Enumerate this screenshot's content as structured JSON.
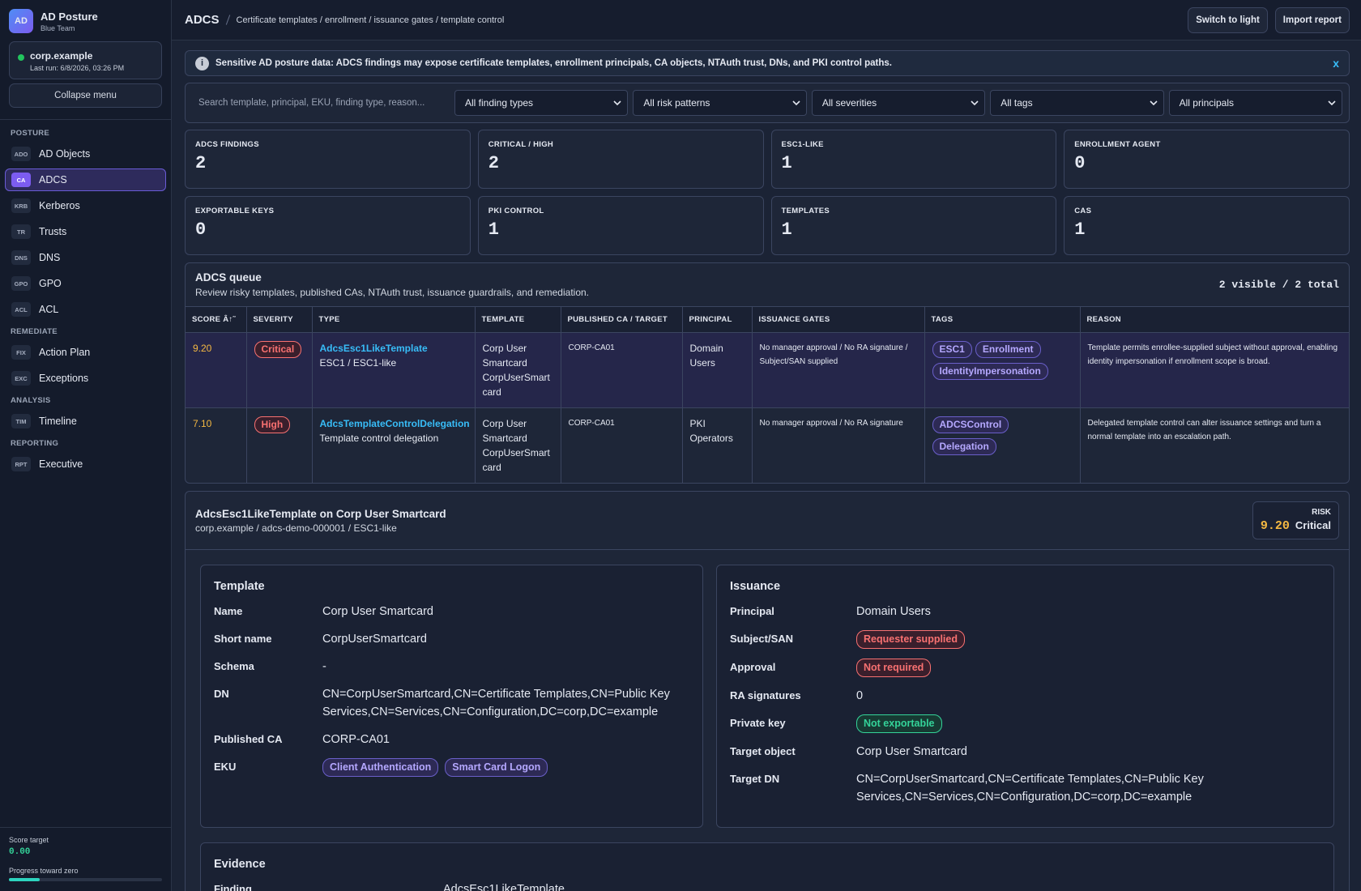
{
  "sidebar": {
    "logo": "AD",
    "app": "AD Posture",
    "team": "Blue Team",
    "domain": "corp.example",
    "last_run": "Last run: 6/8/2026, 03:26 PM",
    "collapse": "Collapse menu",
    "sections": [
      {
        "title": "POSTURE",
        "items": [
          {
            "code": "ADO",
            "label": "AD Objects"
          },
          {
            "code": "CA",
            "label": "ADCS",
            "active": true
          },
          {
            "code": "KRB",
            "label": "Kerberos"
          },
          {
            "code": "TR",
            "label": "Trusts"
          },
          {
            "code": "DNS",
            "label": "DNS"
          },
          {
            "code": "GPO",
            "label": "GPO"
          },
          {
            "code": "ACL",
            "label": "ACL"
          }
        ]
      },
      {
        "title": "REMEDIATE",
        "items": [
          {
            "code": "FIX",
            "label": "Action Plan"
          },
          {
            "code": "EXC",
            "label": "Exceptions"
          }
        ]
      },
      {
        "title": "ANALYSIS",
        "items": [
          {
            "code": "TIM",
            "label": "Timeline"
          }
        ]
      },
      {
        "title": "REPORTING",
        "items": [
          {
            "code": "RPT",
            "label": "Executive"
          }
        ]
      }
    ],
    "score_target_label": "Score target",
    "score_target": "0.00",
    "progress_label": "Progress toward zero"
  },
  "header": {
    "title": "ADCS",
    "breadcrumb": "Certificate templates / enrollment / issuance gates / template control",
    "buttons": [
      "Switch to light",
      "Import report"
    ]
  },
  "banner": {
    "icon": "i",
    "text": "Sensitive AD posture data: ADCS findings may expose certificate templates, enrollment principals, CA objects, NTAuth trust, DNs, and PKI control paths.",
    "close": "x"
  },
  "filters": {
    "search_placeholder": "Search template, principal, EKU, finding type, reason...",
    "selects": [
      "All finding types",
      "All risk patterns",
      "All severities",
      "All tags",
      "All principals"
    ]
  },
  "stats": [
    {
      "label": "ADCS FINDINGS",
      "value": 2
    },
    {
      "label": "CRITICAL / HIGH",
      "value": 2
    },
    {
      "label": "ESC1-LIKE",
      "value": 1
    },
    {
      "label": "ENROLLMENT AGENT",
      "value": 0
    },
    {
      "label": "EXPORTABLE KEYS",
      "value": 0
    },
    {
      "label": "PKI CONTROL",
      "value": 1
    },
    {
      "label": "TEMPLATES",
      "value": 1
    },
    {
      "label": "CAS",
      "value": 1
    }
  ],
  "queue": {
    "title": "ADCS queue",
    "subtitle": "Review risky templates, published CAs, NTAuth trust, issuance guardrails, and remediation.",
    "count": "2 visible / 2 total",
    "columns": [
      "SCORE Â↑˜",
      "SEVERITY",
      "TYPE",
      "TEMPLATE",
      "PUBLISHED CA / TARGET",
      "PRINCIPAL",
      "ISSUANCE GATES",
      "TAGS",
      "REASON"
    ],
    "rows": [
      {
        "score": "9.20",
        "severity": "Critical",
        "type": "AdcsEsc1LikeTemplate",
        "type_sub": "ESC1 / ESC1-like",
        "template": "Corp User Smartcard",
        "template_short": "CorpUserSmartcard",
        "ca": "CORP-CA01",
        "principal": "Domain Users",
        "gates": "No manager approval / No RA signature / Subject/SAN supplied",
        "tags": [
          "ESC1",
          "Enrollment",
          "IdentityImpersonation"
        ],
        "reason": "Template permits enrollee-supplied subject without approval, enabling identity impersonation if enrollment scope is broad.",
        "selected": true
      },
      {
        "score": "7.10",
        "severity": "High",
        "type": "AdcsTemplateControlDelegation",
        "type_sub": "Template control delegation",
        "template": "Corp User Smartcard",
        "template_short": "CorpUserSmartcard",
        "ca": "CORP-CA01",
        "principal": "PKI Operators",
        "gates": "No manager approval / No RA signature",
        "tags": [
          "ADCSControl",
          "Delegation"
        ],
        "reason": "Delegated template control can alter issuance settings and turn a normal template into an escalation path."
      }
    ]
  },
  "detail": {
    "title": "AdcsEsc1LikeTemplate on Corp User Smartcard",
    "subtitle": "corp.example / adcs-demo-000001 / ESC1-like",
    "risk_label": "RISK",
    "risk_score": "9.20",
    "risk_severity": "Critical",
    "cards": [
      {
        "title": "Template",
        "fields": [
          {
            "label": "Name",
            "value": "Corp User Smartcard"
          },
          {
            "label": "Short name",
            "value": "CorpUserSmartcard"
          },
          {
            "label": "Schema",
            "value": "-"
          },
          {
            "label": "DN",
            "value": "CN=CorpUserSmartcard,CN=Certificate Templates,CN=Public Key Services,CN=Services,CN=Configuration,DC=corp,DC=example"
          },
          {
            "label": "Published CA",
            "value": "CORP-CA01"
          },
          {
            "label": "EKU",
            "chips": [
              "Client Authentication",
              "Smart Card Logon"
            ]
          }
        ]
      },
      {
        "title": "Issuance",
        "fields": [
          {
            "label": "Principal",
            "value": "Domain Users"
          },
          {
            "label": "Subject/SAN",
            "chips": [
              "Requester supplied"
            ],
            "tone": "red"
          },
          {
            "label": "Approval",
            "chips": [
              "Not required"
            ],
            "tone": "red"
          },
          {
            "label": "RA signatures",
            "value": "0"
          },
          {
            "label": "Private key",
            "chips": [
              "Not exportable"
            ],
            "tone": "green"
          },
          {
            "label": "Target object",
            "value": "Corp User Smartcard"
          },
          {
            "label": "Target DN",
            "value": "CN=CorpUserSmartcard,CN=Certificate Templates,CN=Public Key Services,CN=Services,CN=Configuration,DC=corp,DC=example"
          }
        ]
      }
    ],
    "evidence": {
      "title": "Evidence",
      "fields": [
        {
          "label": "Finding",
          "value": "AdcsEsc1LikeTemplate"
        }
      ]
    }
  }
}
